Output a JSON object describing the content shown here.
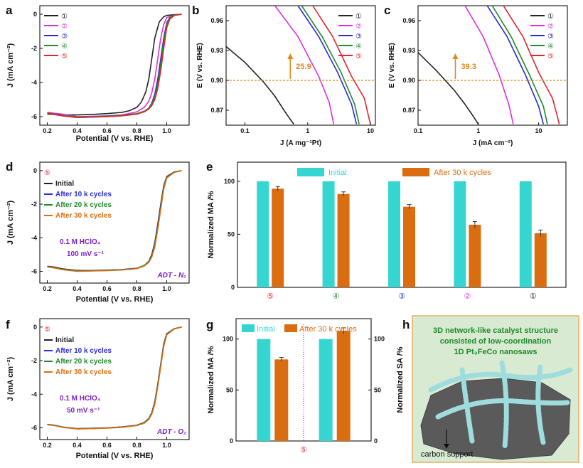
{
  "colors": {
    "c1": "#222222",
    "c2": "#dd2ee3",
    "c3": "#2a2ad8",
    "c4": "#1e8a2a",
    "c5": "#e0262c",
    "initial": "#35d6d2",
    "after": "#d96d10",
    "annot": "#e08a1a",
    "purple": "#7a1fc8",
    "panelH_bg": "#d9ead2",
    "panelH_border": "#e2b06a"
  },
  "chart_data": [
    {
      "panel": "a",
      "type": "line",
      "xlabel": "Potential (V vs. RHE)",
      "ylabel": "J (mA cm⁻²)",
      "xlim": [
        0.15,
        1.15
      ],
      "ylim": [
        -6.5,
        0.5
      ],
      "xticks": [
        "0.2",
        "0.4",
        "0.6",
        "0.8",
        "1.0"
      ],
      "yticks": [
        "0",
        "-2",
        "-4",
        "-6"
      ],
      "legend": [
        "①",
        "②",
        "③",
        "④",
        "⑤"
      ],
      "series": [
        {
          "name": "①",
          "color_key": "c1",
          "x": [
            0.2,
            0.3,
            0.4,
            0.5,
            0.6,
            0.7,
            0.75,
            0.8,
            0.83,
            0.86,
            0.88,
            0.9,
            0.92,
            0.95,
            0.98,
            1.0,
            1.05,
            1.1
          ],
          "y": [
            -5.85,
            -5.9,
            -5.9,
            -5.87,
            -5.82,
            -5.75,
            -5.65,
            -5.45,
            -5.15,
            -4.55,
            -3.8,
            -2.6,
            -1.4,
            -0.45,
            -0.15,
            -0.07,
            -0.03,
            0.0
          ]
        },
        {
          "name": "②",
          "color_key": "c2",
          "x": [
            0.2,
            0.3,
            0.4,
            0.5,
            0.6,
            0.7,
            0.8,
            0.85,
            0.88,
            0.9,
            0.92,
            0.94,
            0.96,
            0.98,
            1.0,
            1.05,
            1.1
          ],
          "y": [
            -5.75,
            -5.85,
            -6.0,
            -5.98,
            -5.95,
            -5.9,
            -5.72,
            -5.45,
            -5.1,
            -4.6,
            -3.8,
            -2.6,
            -1.4,
            -0.6,
            -0.2,
            -0.05,
            0.0
          ]
        },
        {
          "name": "③",
          "color_key": "c3",
          "x": [
            0.2,
            0.3,
            0.4,
            0.5,
            0.6,
            0.7,
            0.8,
            0.85,
            0.88,
            0.9,
            0.92,
            0.94,
            0.96,
            0.98,
            1.0,
            1.02,
            1.05,
            1.1
          ],
          "y": [
            -5.8,
            -5.95,
            -6.05,
            -6.03,
            -6.0,
            -5.95,
            -5.85,
            -5.7,
            -5.5,
            -5.2,
            -4.7,
            -3.8,
            -2.6,
            -1.4,
            -0.5,
            -0.2,
            -0.05,
            0.0
          ]
        },
        {
          "name": "④",
          "color_key": "c4",
          "x": [
            0.2,
            0.3,
            0.4,
            0.5,
            0.6,
            0.7,
            0.8,
            0.85,
            0.88,
            0.9,
            0.92,
            0.94,
            0.96,
            0.98,
            1.0,
            1.02,
            1.05,
            1.1
          ],
          "y": [
            -5.78,
            -5.92,
            -6.02,
            -6.0,
            -5.97,
            -5.92,
            -5.82,
            -5.68,
            -5.5,
            -5.25,
            -4.85,
            -4.1,
            -2.9,
            -1.6,
            -0.6,
            -0.2,
            -0.05,
            0.0
          ]
        },
        {
          "name": "⑤",
          "color_key": "c5",
          "x": [
            0.2,
            0.3,
            0.4,
            0.5,
            0.6,
            0.7,
            0.8,
            0.85,
            0.88,
            0.9,
            0.92,
            0.94,
            0.96,
            0.98,
            1.0,
            1.02,
            1.05,
            1.1
          ],
          "y": [
            -5.8,
            -5.95,
            -6.05,
            -6.02,
            -6.0,
            -5.95,
            -5.85,
            -5.72,
            -5.55,
            -5.35,
            -5.0,
            -4.35,
            -3.3,
            -2.0,
            -0.8,
            -0.3,
            -0.08,
            0.0
          ]
        }
      ]
    },
    {
      "panel": "b",
      "type": "line",
      "xscale": "log",
      "xlabel": "J (A mg⁻¹Pt)",
      "ylabel": "E (V vs. RHE)",
      "xlim": [
        0.05,
        12
      ],
      "ylim": [
        0.855,
        0.975
      ],
      "xticks": [
        "0.1",
        "1",
        "10"
      ],
      "yticks": [
        "0.87",
        "0.90",
        "0.93",
        "0.96"
      ],
      "legend": [
        "①",
        "②",
        "③",
        "④",
        "⑤"
      ],
      "reference_y": 0.9,
      "annotation": "25.9",
      "series": [
        {
          "name": "①",
          "color_key": "c1",
          "x": [
            0.05,
            0.1,
            0.2,
            0.3,
            0.45,
            0.6
          ],
          "y": [
            0.934,
            0.918,
            0.898,
            0.884,
            0.867,
            0.856
          ]
        },
        {
          "name": "②",
          "color_key": "c2",
          "x": [
            0.3,
            0.7,
            1.5,
            2.2,
            2.6
          ],
          "y": [
            0.975,
            0.944,
            0.904,
            0.878,
            0.856
          ]
        },
        {
          "name": "③",
          "color_key": "c3",
          "x": [
            0.7,
            1.5,
            3.0,
            5.0,
            6.0
          ],
          "y": [
            0.975,
            0.944,
            0.908,
            0.876,
            0.856
          ]
        },
        {
          "name": "④",
          "color_key": "c4",
          "x": [
            0.8,
            1.7,
            3.4,
            5.6,
            6.6
          ],
          "y": [
            0.975,
            0.944,
            0.908,
            0.876,
            0.856
          ]
        },
        {
          "name": "⑤",
          "color_key": "c5",
          "x": [
            1.2,
            2.5,
            5.0,
            8.0,
            9.0,
            10.0
          ],
          "y": [
            0.975,
            0.944,
            0.904,
            0.882,
            0.868,
            0.856
          ]
        }
      ]
    },
    {
      "panel": "c",
      "type": "line",
      "xscale": "log",
      "xlabel": "J (mA cm⁻²)",
      "ylabel": "E (V vs. RHE)",
      "xlim": [
        0.1,
        30
      ],
      "ylim": [
        0.855,
        0.975
      ],
      "xticks": [
        "0.1",
        "1",
        "10"
      ],
      "yticks": [
        "0.87",
        "0.90",
        "0.93",
        "0.96"
      ],
      "legend": [
        "①",
        "②",
        "③",
        "④",
        "⑤"
      ],
      "reference_y": 0.9,
      "annotation": "39.3",
      "series": [
        {
          "name": "①",
          "color_key": "c1",
          "x": [
            0.1,
            0.2,
            0.4,
            0.6,
            0.8,
            1.0
          ],
          "y": [
            0.928,
            0.91,
            0.89,
            0.876,
            0.865,
            0.856
          ]
        },
        {
          "name": "②",
          "color_key": "c2",
          "x": [
            0.6,
            1.2,
            2.2,
            3.2,
            3.8
          ],
          "y": [
            0.975,
            0.944,
            0.906,
            0.876,
            0.856
          ]
        },
        {
          "name": "③",
          "color_key": "c3",
          "x": [
            1.4,
            3.0,
            6.0,
            10.0,
            12.0
          ],
          "y": [
            0.975,
            0.944,
            0.906,
            0.874,
            0.856
          ]
        },
        {
          "name": "④",
          "color_key": "c4",
          "x": [
            1.7,
            3.5,
            7.0,
            12.0,
            14.0
          ],
          "y": [
            0.975,
            0.944,
            0.906,
            0.874,
            0.856
          ]
        },
        {
          "name": "⑤",
          "color_key": "c5",
          "x": [
            2.6,
            5.5,
            10.0,
            17.0,
            20.0,
            22.0
          ],
          "y": [
            0.975,
            0.944,
            0.908,
            0.882,
            0.866,
            0.856
          ]
        }
      ]
    },
    {
      "panel": "d",
      "type": "line",
      "xlabel": "Potential (V vs. RHE)",
      "ylabel": "J (mA cm⁻²)",
      "xlim": [
        0.15,
        1.15
      ],
      "ylim": [
        -6.7,
        0.5
      ],
      "xticks": [
        "0.2",
        "0.4",
        "0.6",
        "0.8",
        "1.0"
      ],
      "yticks": [
        "0",
        "-2",
        "-4",
        "-6"
      ],
      "sample": "⑤",
      "legend": [
        "Initial",
        "After 10 k cycles",
        "After 20 k cycles",
        "After 30 k cycles"
      ],
      "conditions": [
        "0.1 M HClO₄",
        "100 mV s⁻¹"
      ],
      "test": "ADT - N₂",
      "series": [
        {
          "name": "Initial",
          "color_key": "c1",
          "x": [
            0.2,
            0.25,
            0.3,
            0.4,
            0.5,
            0.6,
            0.7,
            0.8,
            0.85,
            0.88,
            0.9,
            0.92,
            0.94,
            0.96,
            0.98,
            1.0,
            1.05,
            1.1
          ],
          "y": [
            -5.7,
            -5.75,
            -5.85,
            -5.95,
            -5.95,
            -5.93,
            -5.9,
            -5.82,
            -5.65,
            -5.4,
            -5.0,
            -4.3,
            -3.2,
            -2.0,
            -0.9,
            -0.35,
            -0.08,
            0.0
          ]
        },
        {
          "name": "After 10 k cycles",
          "color_key": "c3",
          "x": [
            0.2,
            0.25,
            0.3,
            0.4,
            0.5,
            0.6,
            0.7,
            0.8,
            0.85,
            0.88,
            0.9,
            0.92,
            0.94,
            0.96,
            0.98,
            1.0,
            1.05,
            1.1
          ],
          "y": [
            -5.72,
            -5.77,
            -5.87,
            -5.97,
            -5.96,
            -5.94,
            -5.9,
            -5.82,
            -5.65,
            -5.42,
            -5.05,
            -4.38,
            -3.3,
            -2.1,
            -0.95,
            -0.38,
            -0.09,
            0.0
          ]
        },
        {
          "name": "After 20 k cycles",
          "color_key": "c4",
          "x": [
            0.2,
            0.25,
            0.3,
            0.4,
            0.5,
            0.6,
            0.7,
            0.8,
            0.85,
            0.88,
            0.9,
            0.92,
            0.94,
            0.96,
            0.98,
            1.0,
            1.05,
            1.1
          ],
          "y": [
            -5.73,
            -5.78,
            -5.88,
            -5.98,
            -5.97,
            -5.95,
            -5.91,
            -5.83,
            -5.66,
            -5.44,
            -5.1,
            -4.45,
            -3.4,
            -2.2,
            -1.0,
            -0.4,
            -0.1,
            0.0
          ]
        },
        {
          "name": "After 30 k cycles",
          "color_key": "after",
          "x": [
            0.2,
            0.25,
            0.3,
            0.4,
            0.5,
            0.6,
            0.7,
            0.8,
            0.85,
            0.88,
            0.9,
            0.92,
            0.94,
            0.96,
            0.98,
            1.0,
            1.05,
            1.1
          ],
          "y": [
            -5.74,
            -5.8,
            -5.9,
            -6.0,
            -5.98,
            -5.96,
            -5.92,
            -5.84,
            -5.68,
            -5.46,
            -5.15,
            -4.55,
            -3.5,
            -2.3,
            -1.1,
            -0.45,
            -0.11,
            0.0
          ]
        }
      ]
    },
    {
      "panel": "e",
      "type": "bar",
      "xlabel": "",
      "ylabel": "Normalized MA /%",
      "ylim": [
        0,
        118
      ],
      "yticks": [
        "0",
        "50",
        "100"
      ],
      "categories": [
        "⑤",
        "④",
        "③",
        "②",
        "①"
      ],
      "category_colors": [
        "c5",
        "c4",
        "c3",
        "c2",
        "c1"
      ],
      "legend": [
        "Initial",
        "After 30 k cycles"
      ],
      "series": [
        {
          "name": "Initial",
          "color_key": "initial",
          "values": [
            100,
            100,
            100,
            100,
            100
          ]
        },
        {
          "name": "After 30 k cycles",
          "color_key": "after",
          "values": [
            93,
            88,
            76,
            59,
            51
          ],
          "errors": [
            2,
            2,
            2,
            3,
            3
          ]
        }
      ]
    },
    {
      "panel": "f",
      "type": "line",
      "xlabel": "Potential (V vs. RHE)",
      "ylabel": "J (mA cm⁻²)",
      "xlim": [
        0.15,
        1.15
      ],
      "ylim": [
        -6.7,
        0.5
      ],
      "xticks": [
        "0.2",
        "0.4",
        "0.6",
        "0.8",
        "1.0"
      ],
      "yticks": [
        "0",
        "-2",
        "-4",
        "-6"
      ],
      "sample": "⑤",
      "legend": [
        "Initial",
        "After 10 k cycles",
        "After 20 k cycles",
        "After 30 k cycles"
      ],
      "conditions": [
        "0.1 M HClO₄",
        "50 mV s⁻¹"
      ],
      "test": "ADT - O₂",
      "series": [
        {
          "name": "Initial",
          "color_key": "c1",
          "x": [
            0.2,
            0.25,
            0.3,
            0.4,
            0.5,
            0.6,
            0.7,
            0.8,
            0.85,
            0.88,
            0.9,
            0.92,
            0.94,
            0.96,
            0.98,
            1.0,
            1.05,
            1.1
          ],
          "y": [
            -5.8,
            -5.85,
            -5.95,
            -6.05,
            -6.03,
            -6.0,
            -5.95,
            -5.85,
            -5.68,
            -5.45,
            -5.1,
            -4.45,
            -3.4,
            -2.2,
            -1.0,
            -0.4,
            -0.1,
            0.0
          ]
        },
        {
          "name": "After 10 k cycles",
          "color_key": "c3",
          "x": [
            0.2,
            0.25,
            0.3,
            0.4,
            0.5,
            0.6,
            0.7,
            0.8,
            0.85,
            0.88,
            0.9,
            0.92,
            0.94,
            0.96,
            0.98,
            1.0,
            1.05,
            1.1
          ],
          "y": [
            -5.8,
            -5.85,
            -5.96,
            -6.05,
            -6.03,
            -6.0,
            -5.95,
            -5.85,
            -5.69,
            -5.46,
            -5.12,
            -4.5,
            -3.45,
            -2.25,
            -1.05,
            -0.42,
            -0.1,
            0.0
          ]
        },
        {
          "name": "After 20 k cycles",
          "color_key": "c4",
          "x": [
            0.2,
            0.25,
            0.3,
            0.4,
            0.5,
            0.6,
            0.7,
            0.8,
            0.85,
            0.88,
            0.9,
            0.92,
            0.94,
            0.96,
            0.98,
            1.0,
            1.05,
            1.1
          ],
          "y": [
            -5.81,
            -5.86,
            -5.96,
            -6.06,
            -6.04,
            -6.01,
            -5.96,
            -5.86,
            -5.7,
            -5.48,
            -5.15,
            -4.55,
            -3.5,
            -2.3,
            -1.1,
            -0.44,
            -0.11,
            0.0
          ]
        },
        {
          "name": "After 30 k cycles",
          "color_key": "after",
          "x": [
            0.2,
            0.25,
            0.3,
            0.4,
            0.5,
            0.6,
            0.7,
            0.8,
            0.85,
            0.88,
            0.9,
            0.92,
            0.94,
            0.96,
            0.98,
            1.0,
            1.05,
            1.1
          ],
          "y": [
            -5.82,
            -5.87,
            -5.97,
            -6.07,
            -6.05,
            -6.02,
            -5.97,
            -5.87,
            -5.72,
            -5.5,
            -5.18,
            -4.6,
            -3.55,
            -2.35,
            -1.15,
            -0.46,
            -0.12,
            0.0
          ]
        }
      ]
    },
    {
      "panel": "g",
      "type": "bar",
      "ylabel_left": "Normalized MA /%",
      "ylabel_right": "Normalized SA /%",
      "ylim": [
        0,
        120
      ],
      "yticks": [
        "0",
        "50",
        "100"
      ],
      "category": "⑤",
      "legend": [
        "Initial",
        "After 30 k cycles"
      ],
      "groups": [
        {
          "axis": "MA (left)",
          "initial": 100,
          "after": 80,
          "after_error": 2
        },
        {
          "axis": "SA (right)",
          "initial": 100,
          "after": 108,
          "after_error": 3
        }
      ]
    }
  ],
  "panels": {
    "a": "a",
    "b": "b",
    "c": "c",
    "d": "d",
    "e": "e",
    "f": "f",
    "g": "g",
    "h": "h"
  },
  "panel_h": {
    "caption_line1": "3D network-like catalyst structure",
    "caption_line2": "consisted of low-coordination",
    "caption_line3": "1D Pt₃FeCo nanosaws",
    "support_label": "carbon support"
  }
}
